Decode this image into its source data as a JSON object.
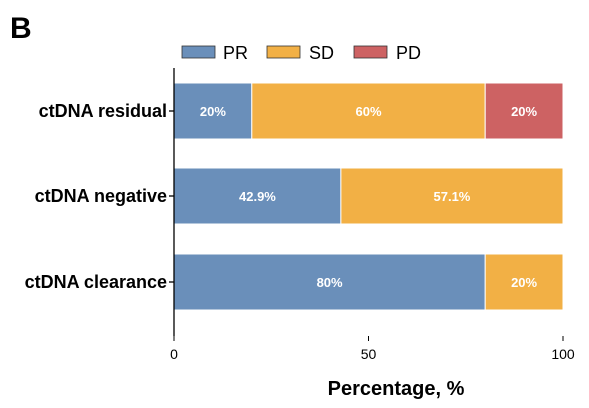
{
  "panel_label": "B",
  "colors": {
    "PR": "#6a8fba",
    "SD": "#f2b045",
    "PD": "#cd6263"
  },
  "chart_data": {
    "type": "bar",
    "orientation": "horizontal",
    "stacked": true,
    "categories": [
      "ctDNA residual",
      "ctDNA negative",
      "ctDNA clearance"
    ],
    "series": [
      {
        "name": "PR",
        "values": [
          20,
          42.9,
          80
        ],
        "labels": [
          "20%",
          "42.9%",
          "80%"
        ]
      },
      {
        "name": "SD",
        "values": [
          60,
          57.1,
          20
        ],
        "labels": [
          "60%",
          "57.1%",
          "20%"
        ]
      },
      {
        "name": "PD",
        "values": [
          20,
          0,
          0
        ],
        "labels": [
          "20%",
          "",
          ""
        ]
      }
    ],
    "xlabel": "Percentage, %",
    "xlim": [
      0,
      100
    ],
    "xticks": [
      0,
      50,
      100
    ],
    "legend_position": "top",
    "grid": false
  }
}
